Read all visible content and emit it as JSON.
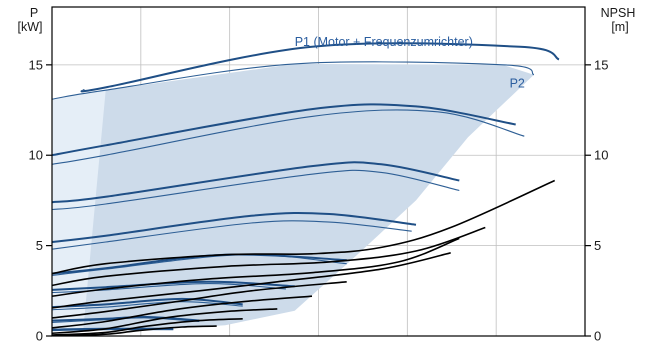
{
  "chart_data": {
    "type": "line",
    "grid": true,
    "left_axis": {
      "title_lines": [
        "P",
        "[kW]"
      ],
      "ticks": [
        0,
        5,
        10,
        15
      ],
      "ylim": [
        0,
        18.2
      ]
    },
    "right_axis": {
      "title_lines": [
        "NPSH",
        "[m]"
      ],
      "ticks": [
        0,
        5,
        10,
        15
      ],
      "ylim": [
        0,
        18.2
      ]
    },
    "xlim": [
      0,
      615
    ],
    "annotations": [
      {
        "text": "P1 (Motor + Frequenzumrichter)",
        "anchor": [
          280,
          16.05
        ],
        "color": "#2a5d9f"
      },
      {
        "text": "P2",
        "anchor": [
          528,
          13.75
        ],
        "color": "#2a5d9f"
      }
    ],
    "power_envelope": [
      [
        0,
        0.5
      ],
      [
        0,
        13.1
      ],
      [
        62,
        13.6
      ],
      [
        280,
        15.05
      ],
      [
        520,
        15.0
      ],
      [
        556,
        14.45
      ],
      [
        480,
        11.0
      ],
      [
        420,
        7.5
      ],
      [
        350,
        4.4
      ],
      [
        280,
        1.4
      ],
      [
        200,
        0.6
      ],
      [
        100,
        0.3
      ]
    ],
    "p2_curves": [
      {
        "x": [
          0,
          62,
          280,
          520,
          556
        ],
        "y": [
          13.1,
          13.6,
          15.05,
          15.0,
          14.45
        ]
      },
      {
        "x": [
          0,
          62,
          300,
          445,
          545
        ],
        "y": [
          9.5,
          10.0,
          12.15,
          12.4,
          11.05
        ]
      },
      {
        "x": [
          0,
          62,
          300,
          380,
          470
        ],
        "y": [
          7.0,
          7.3,
          8.95,
          9.05,
          8.05
        ]
      },
      {
        "x": [
          0,
          62,
          230,
          320,
          415
        ],
        "y": [
          4.8,
          5.2,
          6.25,
          6.3,
          5.8
        ]
      },
      {
        "x": [
          0,
          62,
          220,
          340
        ],
        "y": [
          3.35,
          3.7,
          4.5,
          4.0
        ]
      },
      {
        "x": [
          0,
          62,
          180,
          270
        ],
        "y": [
          2.4,
          2.55,
          2.9,
          2.6
        ]
      },
      {
        "x": [
          0,
          62,
          150,
          220
        ],
        "y": [
          1.45,
          1.6,
          1.9,
          1.65
        ]
      },
      {
        "x": [
          0,
          62,
          110,
          170
        ],
        "y": [
          0.75,
          0.9,
          1.0,
          0.8
        ]
      },
      {
        "x": [
          0,
          62,
          140
        ],
        "y": [
          0.3,
          0.35,
          0.35
        ]
      }
    ],
    "p1_curves": [
      {
        "x": [
          36,
          62,
          300,
          540,
          585
        ],
        "y": [
          13.6,
          13.75,
          16.0,
          16.0,
          15.3
        ]
      },
      {
        "x": [
          0,
          62,
          300,
          420,
          535
        ],
        "y": [
          10.0,
          10.55,
          12.55,
          12.7,
          11.7
        ]
      },
      {
        "x": [
          0,
          62,
          300,
          380,
          470
        ],
        "y": [
          7.4,
          7.7,
          9.4,
          9.5,
          8.6
        ]
      },
      {
        "x": [
          0,
          62,
          230,
          320,
          420
        ],
        "y": [
          5.2,
          5.55,
          6.65,
          6.75,
          6.15
        ]
      },
      {
        "x": [
          0,
          62,
          200,
          340
        ],
        "y": [
          3.45,
          3.75,
          4.5,
          4.2
        ]
      },
      {
        "x": [
          0,
          62,
          180,
          280
        ],
        "y": [
          2.55,
          2.7,
          3.0,
          2.75
        ]
      },
      {
        "x": [
          0,
          62,
          150,
          220
        ],
        "y": [
          1.6,
          1.75,
          2.05,
          1.75
        ]
      },
      {
        "x": [
          0,
          62,
          110,
          170
        ],
        "y": [
          0.85,
          0.95,
          1.05,
          0.85
        ]
      },
      {
        "x": [
          0,
          62,
          140
        ],
        "y": [
          0.35,
          0.4,
          0.4
        ]
      }
    ],
    "npsh_curves": [
      {
        "x": [
          0,
          62,
          200,
          300,
          380,
          460,
          580
        ],
        "y": [
          3.45,
          4.0,
          4.5,
          4.55,
          4.9,
          6.0,
          8.6
        ]
      },
      {
        "x": [
          0,
          62,
          200,
          320,
          420,
          500
        ],
        "y": [
          2.8,
          3.3,
          3.85,
          4.1,
          4.7,
          6.0
        ]
      },
      {
        "x": [
          0,
          62,
          180,
          300,
          400,
          470
        ],
        "y": [
          2.2,
          2.6,
          3.15,
          3.5,
          4.1,
          5.4
        ]
      },
      {
        "x": [
          0,
          62,
          170,
          260,
          380,
          460
        ],
        "y": [
          1.55,
          1.95,
          2.5,
          3.0,
          3.7,
          4.6
        ]
      },
      {
        "x": [
          0,
          62,
          150,
          230,
          340
        ],
        "y": [
          1.0,
          1.35,
          1.95,
          2.5,
          3.0
        ]
      },
      {
        "x": [
          0,
          62,
          140,
          220,
          300
        ],
        "y": [
          0.45,
          0.8,
          1.45,
          1.9,
          2.2
        ]
      },
      {
        "x": [
          0,
          62,
          130,
          200,
          260
        ],
        "y": [
          0.15,
          0.4,
          1.0,
          1.35,
          1.5
        ]
      },
      {
        "x": [
          0,
          62,
          110,
          170,
          220
        ],
        "y": [
          0.05,
          0.2,
          0.55,
          0.85,
          0.95
        ]
      },
      {
        "x": [
          0,
          62,
          100,
          150,
          190
        ],
        "y": [
          0.0,
          0.1,
          0.3,
          0.5,
          0.55
        ]
      }
    ],
    "colors": {
      "envelope_fill": "#cddbea",
      "envelope_fill_light": "#e5eef7",
      "p1_stroke": "#1f4f86",
      "p2_stroke": "#2e5f95",
      "npsh_stroke": "#000000",
      "label": "#2a5d9f",
      "grid": "#bfbfbf",
      "axis": "#000000"
    }
  }
}
